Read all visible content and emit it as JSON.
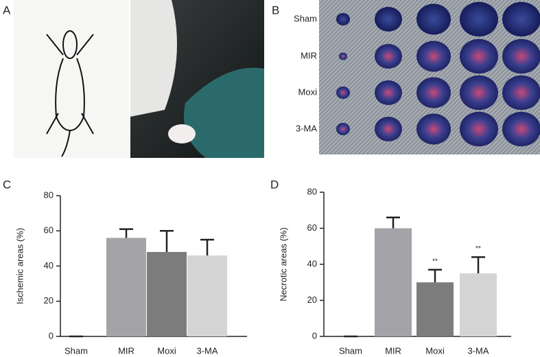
{
  "panels": [
    "A",
    "B",
    "C",
    "D"
  ],
  "photo_row_labels": [
    "Sham",
    "MIR",
    "Moxi",
    "3-MA"
  ],
  "chart_data": [
    {
      "type": "bar",
      "ylabel": "Ischemic areas (%)",
      "categories": [
        "Sham",
        "MIR",
        "Moxi",
        "3-MA"
      ],
      "values": [
        0,
        56,
        48,
        46
      ],
      "errors": [
        0,
        5,
        12,
        9
      ],
      "colors": [
        "#a4a4a8",
        "#a4a4a8",
        "#7c7c7c",
        "#d4d4d4"
      ],
      "ylim": [
        0,
        80
      ],
      "yticks": [
        0,
        20,
        40,
        60,
        80
      ]
    },
    {
      "type": "bar",
      "ylabel": "Necrotic areas (%)",
      "categories": [
        "Sham",
        "MIR",
        "Moxi",
        "3-MA"
      ],
      "values": [
        0,
        60,
        30,
        35
      ],
      "errors": [
        0,
        6,
        7,
        9
      ],
      "colors": [
        "#a4a4a8",
        "#a4a4a8",
        "#7c7c7c",
        "#d4d4d4"
      ],
      "significance": [
        null,
        null,
        "**",
        "**"
      ],
      "ylim": [
        0,
        80
      ],
      "yticks": [
        0,
        20,
        40,
        60,
        80
      ]
    }
  ]
}
